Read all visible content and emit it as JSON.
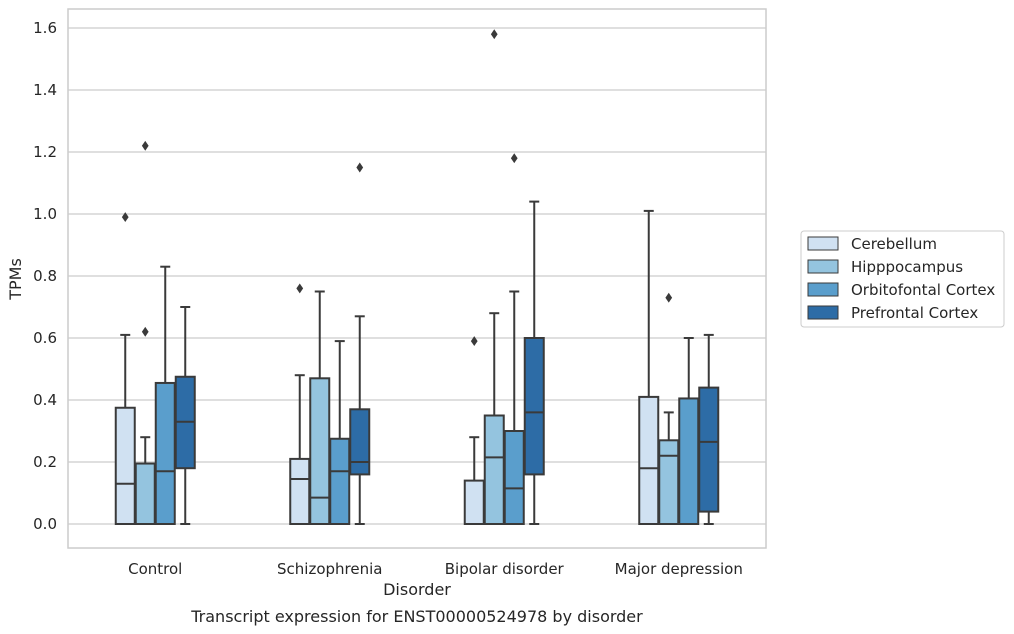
{
  "chart_data": {
    "type": "box",
    "xlabel": "Disorder",
    "ylabel": "TPMs",
    "caption": "Transcript expression for ENST00000524978 by disorder",
    "ylim": [
      -0.08,
      1.66
    ],
    "yticks": [
      "0.0",
      "0.2",
      "0.4",
      "0.6",
      "0.8",
      "1.0",
      "1.2",
      "1.4",
      "1.6"
    ],
    "categories": [
      "Control",
      "Schizophrenia",
      "Bipolar disorder",
      "Major depression"
    ],
    "grid": "horizontal",
    "legend_position": "right",
    "series": [
      {
        "name": "Cerebellum",
        "color": "#d0e1f2",
        "boxes": [
          {
            "min": 0.0,
            "q1": 0.0,
            "median": 0.13,
            "q3": 0.375,
            "max": 0.61,
            "outliers": [
              0.99
            ]
          },
          {
            "min": 0.0,
            "q1": 0.0,
            "median": 0.145,
            "q3": 0.21,
            "max": 0.48,
            "outliers": [
              0.76
            ]
          },
          {
            "min": 0.0,
            "q1": 0.0,
            "median": 0.0,
            "q3": 0.14,
            "max": 0.28,
            "outliers": [
              0.59
            ]
          },
          {
            "min": 0.0,
            "q1": 0.0,
            "median": 0.18,
            "q3": 0.41,
            "max": 1.01,
            "outliers": []
          }
        ]
      },
      {
        "name": "Hipppocampus",
        "color": "#94c4df",
        "boxes": [
          {
            "min": 0.0,
            "q1": 0.0,
            "median": 0.0,
            "q3": 0.195,
            "max": 0.28,
            "outliers": [
              1.22,
              0.62
            ]
          },
          {
            "min": 0.0,
            "q1": 0.0,
            "median": 0.085,
            "q3": 0.47,
            "max": 0.75,
            "outliers": []
          },
          {
            "min": 0.0,
            "q1": 0.0,
            "median": 0.215,
            "q3": 0.35,
            "max": 0.68,
            "outliers": [
              1.58
            ]
          },
          {
            "min": 0.0,
            "q1": 0.0,
            "median": 0.22,
            "q3": 0.27,
            "max": 0.36,
            "outliers": [
              0.73
            ]
          }
        ]
      },
      {
        "name": "Orbitofontal Cortex",
        "color": "#5a9ecc",
        "boxes": [
          {
            "min": 0.0,
            "q1": 0.0,
            "median": 0.17,
            "q3": 0.455,
            "max": 0.83,
            "outliers": []
          },
          {
            "min": 0.0,
            "q1": 0.0,
            "median": 0.17,
            "q3": 0.275,
            "max": 0.59,
            "outliers": []
          },
          {
            "min": 0.0,
            "q1": 0.0,
            "median": 0.115,
            "q3": 0.3,
            "max": 0.75,
            "outliers": [
              1.18
            ]
          },
          {
            "min": 0.0,
            "q1": 0.0,
            "median": 0.0,
            "q3": 0.405,
            "max": 0.6,
            "outliers": []
          }
        ]
      },
      {
        "name": "Prefrontal Cortex",
        "color": "#2d6ca6",
        "boxes": [
          {
            "min": 0.0,
            "q1": 0.18,
            "median": 0.33,
            "q3": 0.475,
            "max": 0.7,
            "outliers": []
          },
          {
            "min": 0.0,
            "q1": 0.16,
            "median": 0.2,
            "q3": 0.37,
            "max": 0.67,
            "outliers": [
              1.15
            ]
          },
          {
            "min": 0.0,
            "q1": 0.16,
            "median": 0.36,
            "q3": 0.6,
            "max": 1.04,
            "outliers": []
          },
          {
            "min": 0.0,
            "q1": 0.04,
            "median": 0.265,
            "q3": 0.44,
            "max": 0.61,
            "outliers": []
          }
        ]
      }
    ]
  }
}
